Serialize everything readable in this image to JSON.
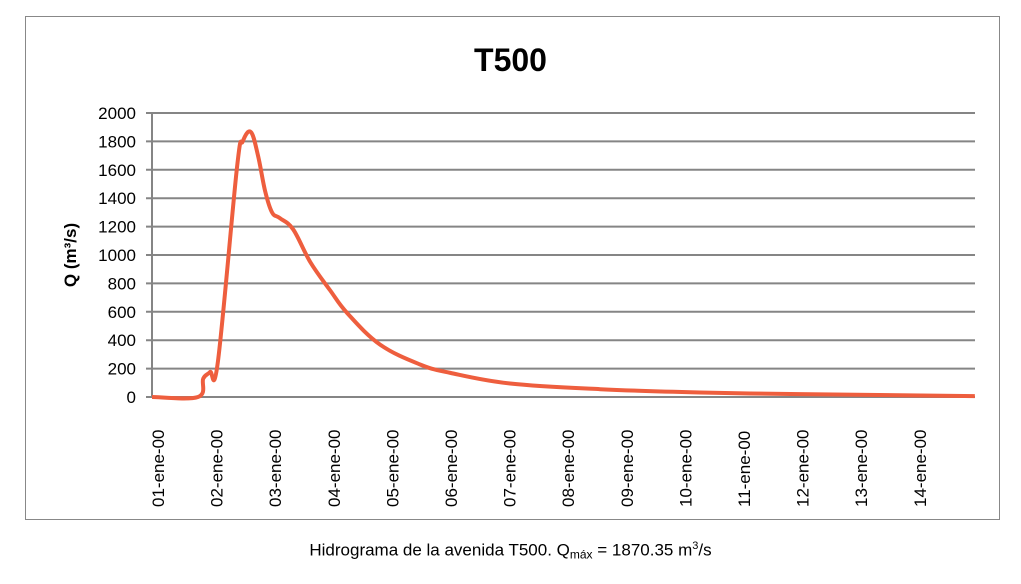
{
  "chart_data": {
    "type": "line",
    "title": "T500",
    "xlabel": "",
    "ylabel": "Q (m³/s)",
    "ylim": [
      0,
      2000
    ],
    "yticks": [
      "0",
      "200",
      "400",
      "600",
      "800",
      "1000",
      "1200",
      "1400",
      "1600",
      "1800",
      "2000"
    ],
    "xticks": [
      "01-ene-00",
      "02-ene-00",
      "03-ene-00",
      "04-ene-00",
      "05-ene-00",
      "06-ene-00",
      "07-ene-00",
      "08-ene-00",
      "09-ene-00",
      "10-ene-00",
      "11-ene-00",
      "12-ene-00",
      "13-ene-00",
      "14-ene-00"
    ],
    "grid": true,
    "legend": "none",
    "color": "#EE5E3E",
    "series": [
      {
        "x": [
          "01-ene 00:00",
          "01-ene 18:50",
          "01-ene 21:00",
          "01-ene 23:45",
          "02-ene 03:00",
          "02-ene 10:50",
          "02-ene 13:10",
          "02-ene 16:30",
          "02-ene 19:25",
          "02-ene 22:20",
          "03-ene 01:10",
          "03-ene 04:20",
          "03-ene 09:50",
          "03-ene 16:50",
          "04-ene 01:00",
          "04-ene 08:00",
          "04-ene 21:20",
          "05-ene 13:40",
          "06-ene 02:10",
          "07-ene 02:40",
          "08-ene 15:35",
          "10-ene 08:25",
          "12-ene 01:25",
          "13-ene 18:15",
          "15-ene 01:00"
        ],
        "y": [
          0,
          0,
          130,
          176,
          250,
          1620,
          1800,
          1866,
          1700,
          1450,
          1300,
          1260,
          1180,
          950,
          750,
          590,
          370,
          230,
          170,
          95,
          55,
          32,
          20,
          12,
          6
        ]
      }
    ]
  },
  "caption": {
    "prefix": "Hidrograma de la avenida T500. Q",
    "sub": "máx",
    "middle": " = 1870.35 m",
    "sup": "3",
    "suffix": "/s"
  }
}
